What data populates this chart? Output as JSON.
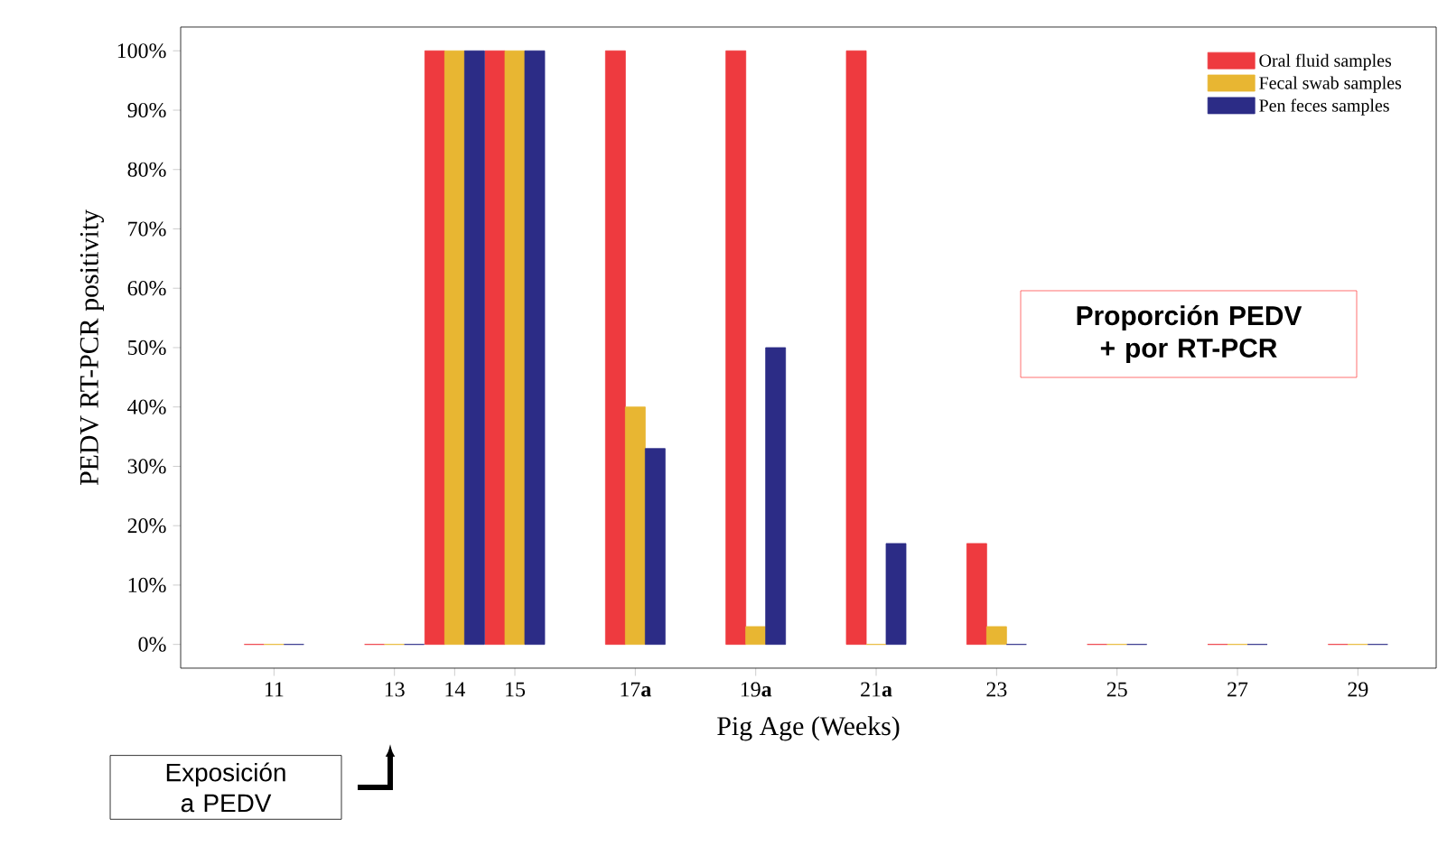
{
  "chart_data": {
    "type": "bar",
    "xlabel": "Pig Age (Weeks)",
    "ylabel": "PEDV RT-PCR positivity",
    "x": [
      11,
      13,
      14,
      15,
      17,
      19,
      21,
      23,
      25,
      27,
      29
    ],
    "xlim": [
      9.45,
      30.3
    ],
    "xticks": [
      11,
      13,
      14,
      15,
      {
        "value": 17,
        "label": "17**a**"
      },
      {
        "value": 19,
        "label": "19**a**"
      },
      {
        "value": 21,
        "label": "21**a**"
      },
      23,
      25,
      27,
      29
    ],
    "ylim": [
      -4,
      104
    ],
    "yticks": [
      {
        "value": 0,
        "label": "0%"
      },
      {
        "value": 10,
        "label": "10%"
      },
      {
        "value": 20,
        "label": "20%"
      },
      {
        "value": 30,
        "label": "30%"
      },
      {
        "value": 40,
        "label": "40%"
      },
      {
        "value": 50,
        "label": "50%"
      },
      {
        "value": 60,
        "label": "60%"
      },
      {
        "value": 70,
        "label": "70%"
      },
      {
        "value": 80,
        "label": "80%"
      },
      {
        "value": 90,
        "label": "90%"
      },
      {
        "value": 100,
        "label": "100%"
      }
    ],
    "series": [
      {
        "name": "Oral fluid samples",
        "color": "#ee3a3f",
        "values": [
          0,
          0,
          100,
          100,
          100,
          100,
          100,
          17,
          0,
          0,
          0
        ]
      },
      {
        "name": "Fecal swab samples",
        "color": "#e8b632",
        "values": [
          0,
          0,
          100,
          100,
          40,
          3,
          0,
          3,
          0,
          0,
          0
        ]
      },
      {
        "name": "Pen feces samples",
        "color": "#2c2c86",
        "values": [
          0,
          0,
          100,
          100,
          33,
          50,
          17,
          0,
          0,
          0,
          0
        ]
      }
    ],
    "legend": "top right",
    "annotations": [
      "Proporción PEDV + por RT-PCR",
      "Exposición a PEDV"
    ]
  }
}
